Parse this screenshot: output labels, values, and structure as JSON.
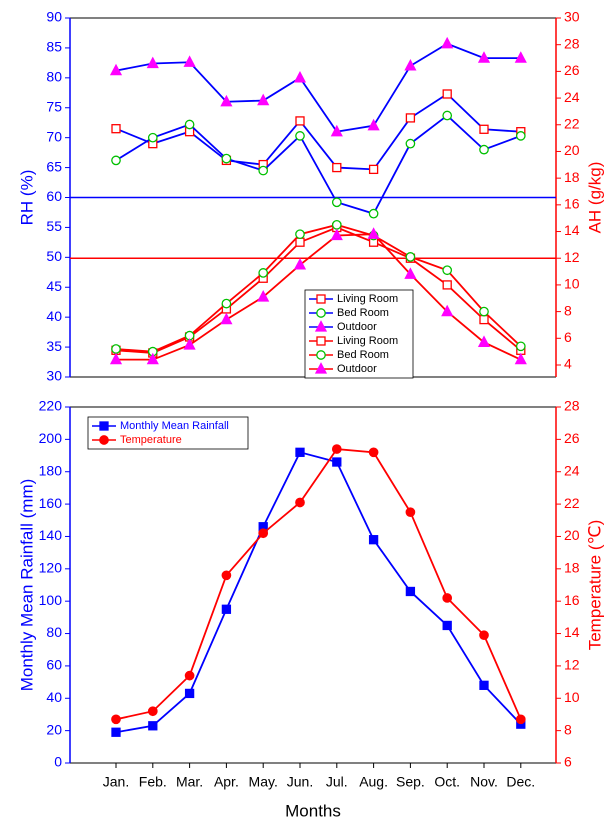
{
  "chart_data": [
    {
      "type": "line",
      "y_label": "RH (%)",
      "y2_label": "AH (g/kg)",
      "categories": [
        null,
        null,
        null,
        null,
        null,
        null,
        null,
        null,
        null,
        null,
        null,
        null
      ],
      "ylim": [
        30,
        90
      ],
      "yticks": [
        30,
        35,
        40,
        45,
        50,
        55,
        60,
        65,
        70,
        75,
        80,
        85,
        90
      ],
      "y2lim": [
        3.1,
        30
      ],
      "y2ticks": [
        4,
        6,
        8,
        10,
        12,
        14,
        16,
        18,
        20,
        22,
        24,
        26,
        28,
        30
      ],
      "y_color": "#0000ff",
      "y2_color": "#ff0000",
      "hlines": [
        {
          "value": 60,
          "axis": "y",
          "color": "#0000ff"
        },
        {
          "value": 12,
          "axis": "y2",
          "color": "#ff0000"
        }
      ],
      "legend": "bottom-center",
      "series": [
        {
          "name": "Living Room",
          "color": "#0000ff",
          "marker": "square-open",
          "marker_color": "#ff0000",
          "axis": "y",
          "values": [
            71.5,
            69,
            71,
            66.2,
            65.5,
            72.8,
            65,
            64.7,
            73.3,
            77.3,
            71.4,
            71
          ]
        },
        {
          "name": "Bed Room",
          "color": "#0000ff",
          "marker": "circle-open",
          "marker_color": "#00c000",
          "axis": "y",
          "values": [
            66.2,
            70,
            72.2,
            66.5,
            64.5,
            70.3,
            59.2,
            57.3,
            69,
            73.7,
            68,
            70.3
          ]
        },
        {
          "name": "Outdoor",
          "color": "#0000ff",
          "marker": "triangle",
          "marker_color": "#ff00ff",
          "axis": "y",
          "values": [
            81.2,
            82.4,
            82.6,
            76,
            76.2,
            80,
            71,
            72,
            82,
            85.7,
            83.3,
            83.3
          ]
        },
        {
          "name": "Living Room",
          "color": "#ff0000",
          "marker": "square-open",
          "marker_color": "#ff0000",
          "axis": "y2",
          "values": [
            5.1,
            4.9,
            6.1,
            8.2,
            10.5,
            13.2,
            14.3,
            13.2,
            12.0,
            10.0,
            7.4,
            5.1
          ]
        },
        {
          "name": "Bed Room",
          "color": "#ff0000",
          "marker": "circle-open",
          "marker_color": "#00c000",
          "axis": "y2",
          "values": [
            5.2,
            5.0,
            6.2,
            8.6,
            10.9,
            13.8,
            14.5,
            13.7,
            12.1,
            11.1,
            8.0,
            5.4
          ]
        },
        {
          "name": "Outdoor",
          "color": "#ff0000",
          "marker": "triangle",
          "marker_color": "#ff00ff",
          "axis": "y2",
          "values": [
            4.4,
            4.4,
            5.5,
            7.4,
            9.1,
            11.5,
            13.7,
            13.8,
            10.8,
            8.0,
            5.7,
            4.4
          ]
        }
      ]
    },
    {
      "type": "line",
      "x_label": "Months",
      "y_label": "Monthly Mean Rainfall (mm)",
      "y2_label": "Temperature (℃)",
      "categories": [
        "Jan.",
        "Feb.",
        "Mar.",
        "Apr.",
        "May.",
        "Jun.",
        "Jul.",
        "Aug.",
        "Sep.",
        "Oct.",
        "Nov.",
        "Dec."
      ],
      "ylim": [
        0,
        220
      ],
      "yticks": [
        0,
        20,
        40,
        60,
        80,
        100,
        120,
        140,
        160,
        180,
        200,
        220
      ],
      "y2lim": [
        6,
        28
      ],
      "y2ticks": [
        6,
        8,
        10,
        12,
        14,
        16,
        18,
        20,
        22,
        24,
        26,
        28
      ],
      "y_color": "#0000ff",
      "y2_color": "#ff0000",
      "legend": "upper-left",
      "series": [
        {
          "name": "Monthly Mean Rainfall",
          "color": "#0000ff",
          "marker": "square",
          "marker_color": "#0000ff",
          "axis": "y",
          "values": [
            19,
            23,
            43,
            95,
            146,
            192,
            186,
            138,
            106,
            85,
            48,
            24
          ]
        },
        {
          "name": "Temperature",
          "color": "#ff0000",
          "marker": "circle",
          "marker_color": "#ff0000",
          "axis": "y2",
          "values": [
            8.7,
            9.2,
            11.4,
            17.6,
            20.2,
            22.1,
            25.4,
            25.2,
            21.5,
            16.2,
            13.9,
            8.7
          ]
        }
      ]
    }
  ]
}
